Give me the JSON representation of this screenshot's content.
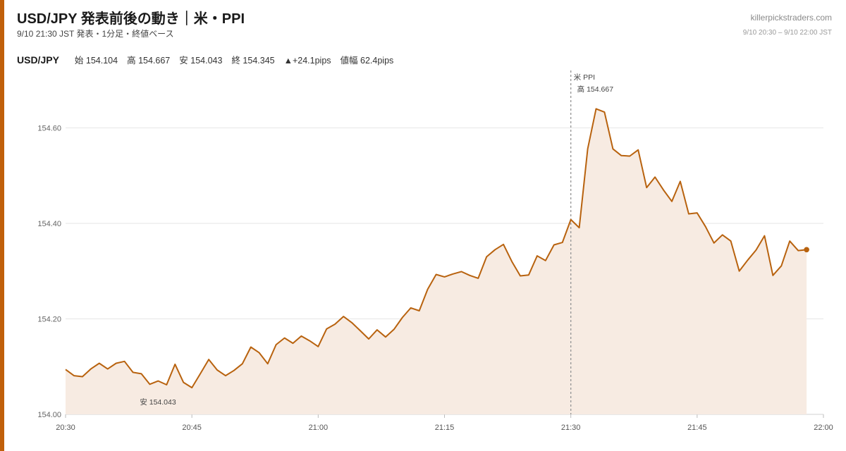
{
  "header": {
    "title": "USD/JPY 発表前後の動き｜米・PPI",
    "subtitle": "9/10 21:30 JST 発表・1分足・終値ベース",
    "site": "killerpickstraders.com",
    "range": "9/10 20:30 – 9/10 22:00 JST"
  },
  "stats": {
    "symbol": "USD/JPY",
    "open": "始 154.104",
    "high": "高 154.667",
    "low": "安 154.043",
    "close": "終 154.345",
    "change": "▲+24.1pips",
    "range": "値幅 62.4pips"
  },
  "colors": {
    "accent": "#c0600a",
    "line": "#b8620e",
    "fill": "#f7ebe2",
    "grid": "#e6e6e6",
    "event_line": "#999999"
  },
  "chart_data": {
    "type": "area",
    "title": "",
    "xlabel": "",
    "ylabel": "",
    "x_ticks": [
      "20:30",
      "20:45",
      "21:00",
      "21:15",
      "21:30",
      "21:45",
      "22:00"
    ],
    "x_range_minutes": [
      0,
      90
    ],
    "y_ticks": [
      "154.00",
      "154.20",
      "154.40",
      "154.60"
    ],
    "ylim": [
      154.0,
      154.6
    ],
    "grid": true,
    "series": [
      {
        "values": [
          154.094,
          154.081,
          154.079,
          154.095,
          154.107,
          154.095,
          154.107,
          154.111,
          154.088,
          154.085,
          154.063,
          154.07,
          154.062,
          154.105,
          154.067,
          154.056,
          154.085,
          154.115,
          154.093,
          154.081,
          154.092,
          154.106,
          154.141,
          154.129,
          154.106,
          154.146,
          154.16,
          154.149,
          154.164,
          154.154,
          154.142,
          154.179,
          154.189,
          154.205,
          154.192,
          154.175,
          154.158,
          154.177,
          154.162,
          154.178,
          154.203,
          154.223,
          154.217,
          154.262,
          154.293,
          154.288,
          154.294,
          154.299,
          154.291,
          154.285,
          154.33,
          154.345,
          154.356,
          154.32,
          154.29,
          154.292,
          154.332,
          154.322,
          154.355,
          154.36,
          154.408,
          154.391,
          154.556,
          154.64,
          154.633,
          154.556,
          154.542,
          154.541,
          154.554,
          154.475,
          154.497,
          154.47,
          154.446,
          154.488,
          154.42,
          154.422,
          154.393,
          154.359,
          154.376,
          154.363,
          154.3,
          154.323,
          154.344,
          154.374,
          154.291,
          154.311,
          154.363,
          154.343,
          154.345
        ]
      }
    ],
    "annotations": {
      "event_label": "米 PPI",
      "event_time": "21:30",
      "event_minute": 60,
      "high_label": "高 154.667",
      "low_label": "安 154.043",
      "low_minute": 12,
      "last_minute": 88
    }
  }
}
